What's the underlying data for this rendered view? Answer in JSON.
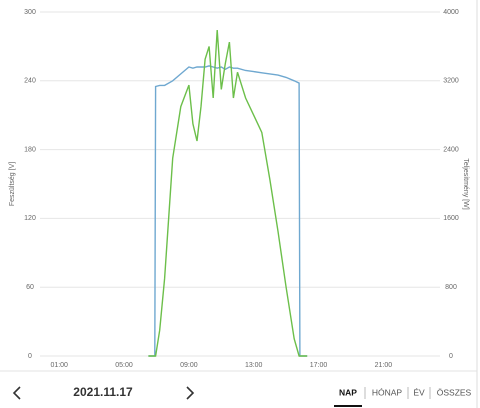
{
  "chart_data": {
    "type": "line",
    "ylabel": "Feszültség [V]",
    "y2label": "Teljesítmény [W]",
    "x": [
      6.5,
      6.9,
      6.95,
      7.2,
      7.5,
      8.0,
      8.5,
      9.0,
      9.25,
      9.5,
      9.75,
      10.0,
      10.25,
      10.5,
      10.75,
      11.0,
      11.25,
      11.5,
      11.75,
      12.0,
      12.5,
      13.0,
      13.5,
      14.0,
      14.5,
      15.0,
      15.5,
      15.8,
      15.85,
      16.3
    ],
    "series": [
      {
        "name": "Feszültség",
        "color": "#6fa8d0",
        "axis": "y",
        "values": [
          0,
          0,
          235,
          236,
          236,
          240,
          246,
          252,
          251,
          252,
          252,
          252,
          253,
          252,
          251,
          252,
          250,
          252,
          251,
          251,
          249,
          248,
          247,
          246,
          245,
          243,
          240,
          238,
          0,
          0
        ]
      },
      {
        "name": "Teljesítmény",
        "color": "#6cbf4a",
        "axis": "y2",
        "values": [
          0,
          0,
          0,
          300,
          900,
          2300,
          2900,
          3150,
          2700,
          2500,
          2900,
          3450,
          3600,
          3000,
          3790,
          3100,
          3400,
          3650,
          3000,
          3300,
          3000,
          2800,
          2600,
          2050,
          1450,
          800,
          200,
          0,
          0,
          0
        ]
      }
    ],
    "xlim": [
      0,
      24
    ],
    "xticks": [
      {
        "value": 1,
        "label": "01:00"
      },
      {
        "value": 5,
        "label": "05:00"
      },
      {
        "value": 9,
        "label": "09:00"
      },
      {
        "value": 13,
        "label": "13:00"
      },
      {
        "value": 17,
        "label": "17:00"
      },
      {
        "value": 21,
        "label": "21:00"
      }
    ],
    "ylim": [
      0,
      300
    ],
    "yticks": [
      0,
      60,
      120,
      180,
      240,
      300
    ],
    "y2lim": [
      0,
      4000
    ],
    "y2ticks": [
      0,
      800,
      1600,
      2400,
      3200,
      4000
    ],
    "grid": true
  },
  "ui": {
    "date": "2021.11.17",
    "tabs": [
      "NAP",
      "HÓNAP",
      "ÉV",
      "ÖSSZES"
    ],
    "active_tab": 0
  }
}
